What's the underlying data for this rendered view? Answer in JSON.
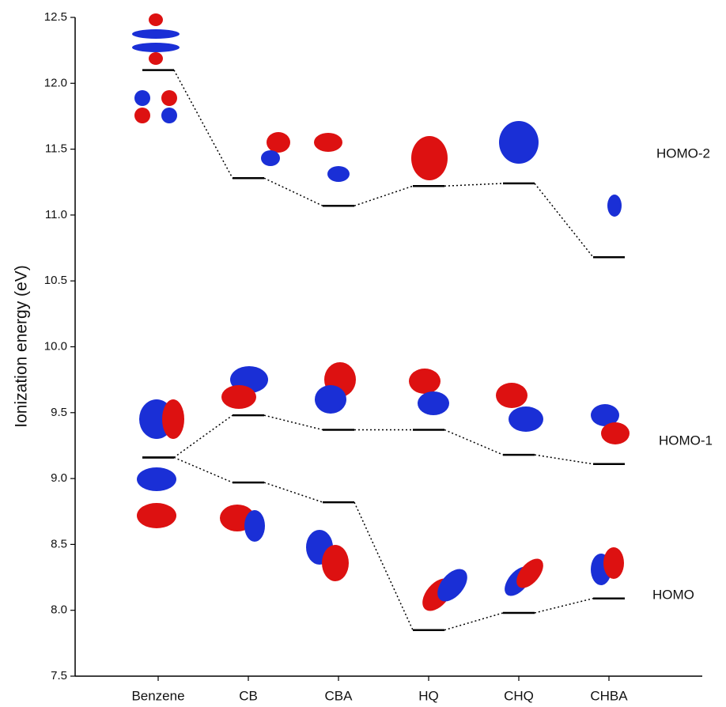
{
  "chart_data": {
    "type": "energy_levels",
    "y_label": "Ionization energy (eV)",
    "categories": [
      "Benzene",
      "CB",
      "CBA",
      "HQ",
      "CHQ",
      "CHBA"
    ],
    "series": [
      {
        "name": "HOMO-2",
        "color": "#000000",
        "values": [
          12.1,
          11.28,
          11.07,
          11.22,
          11.24,
          10.68
        ]
      },
      {
        "name": "HOMO-1",
        "color": "#000000",
        "values": [
          9.16,
          9.48,
          9.37,
          9.37,
          9.18,
          9.11
        ]
      },
      {
        "name": "HOMO",
        "color": "#000000",
        "values": [
          9.16,
          8.97,
          8.82,
          7.85,
          7.98,
          8.09
        ]
      }
    ],
    "ylim": [
      7.5,
      12.5
    ],
    "yticks": [
      7.5,
      {
        "value": 8,
        "label": "8.0"
      },
      8.5,
      {
        "value": 9,
        "label": "9.0"
      },
      9.5,
      {
        "value": 10,
        "label": "10.0"
      },
      10.5,
      {
        "value": 11,
        "label": "11.0"
      },
      11.5,
      {
        "value": 12,
        "label": "12.0"
      },
      12.5
    ]
  }
}
